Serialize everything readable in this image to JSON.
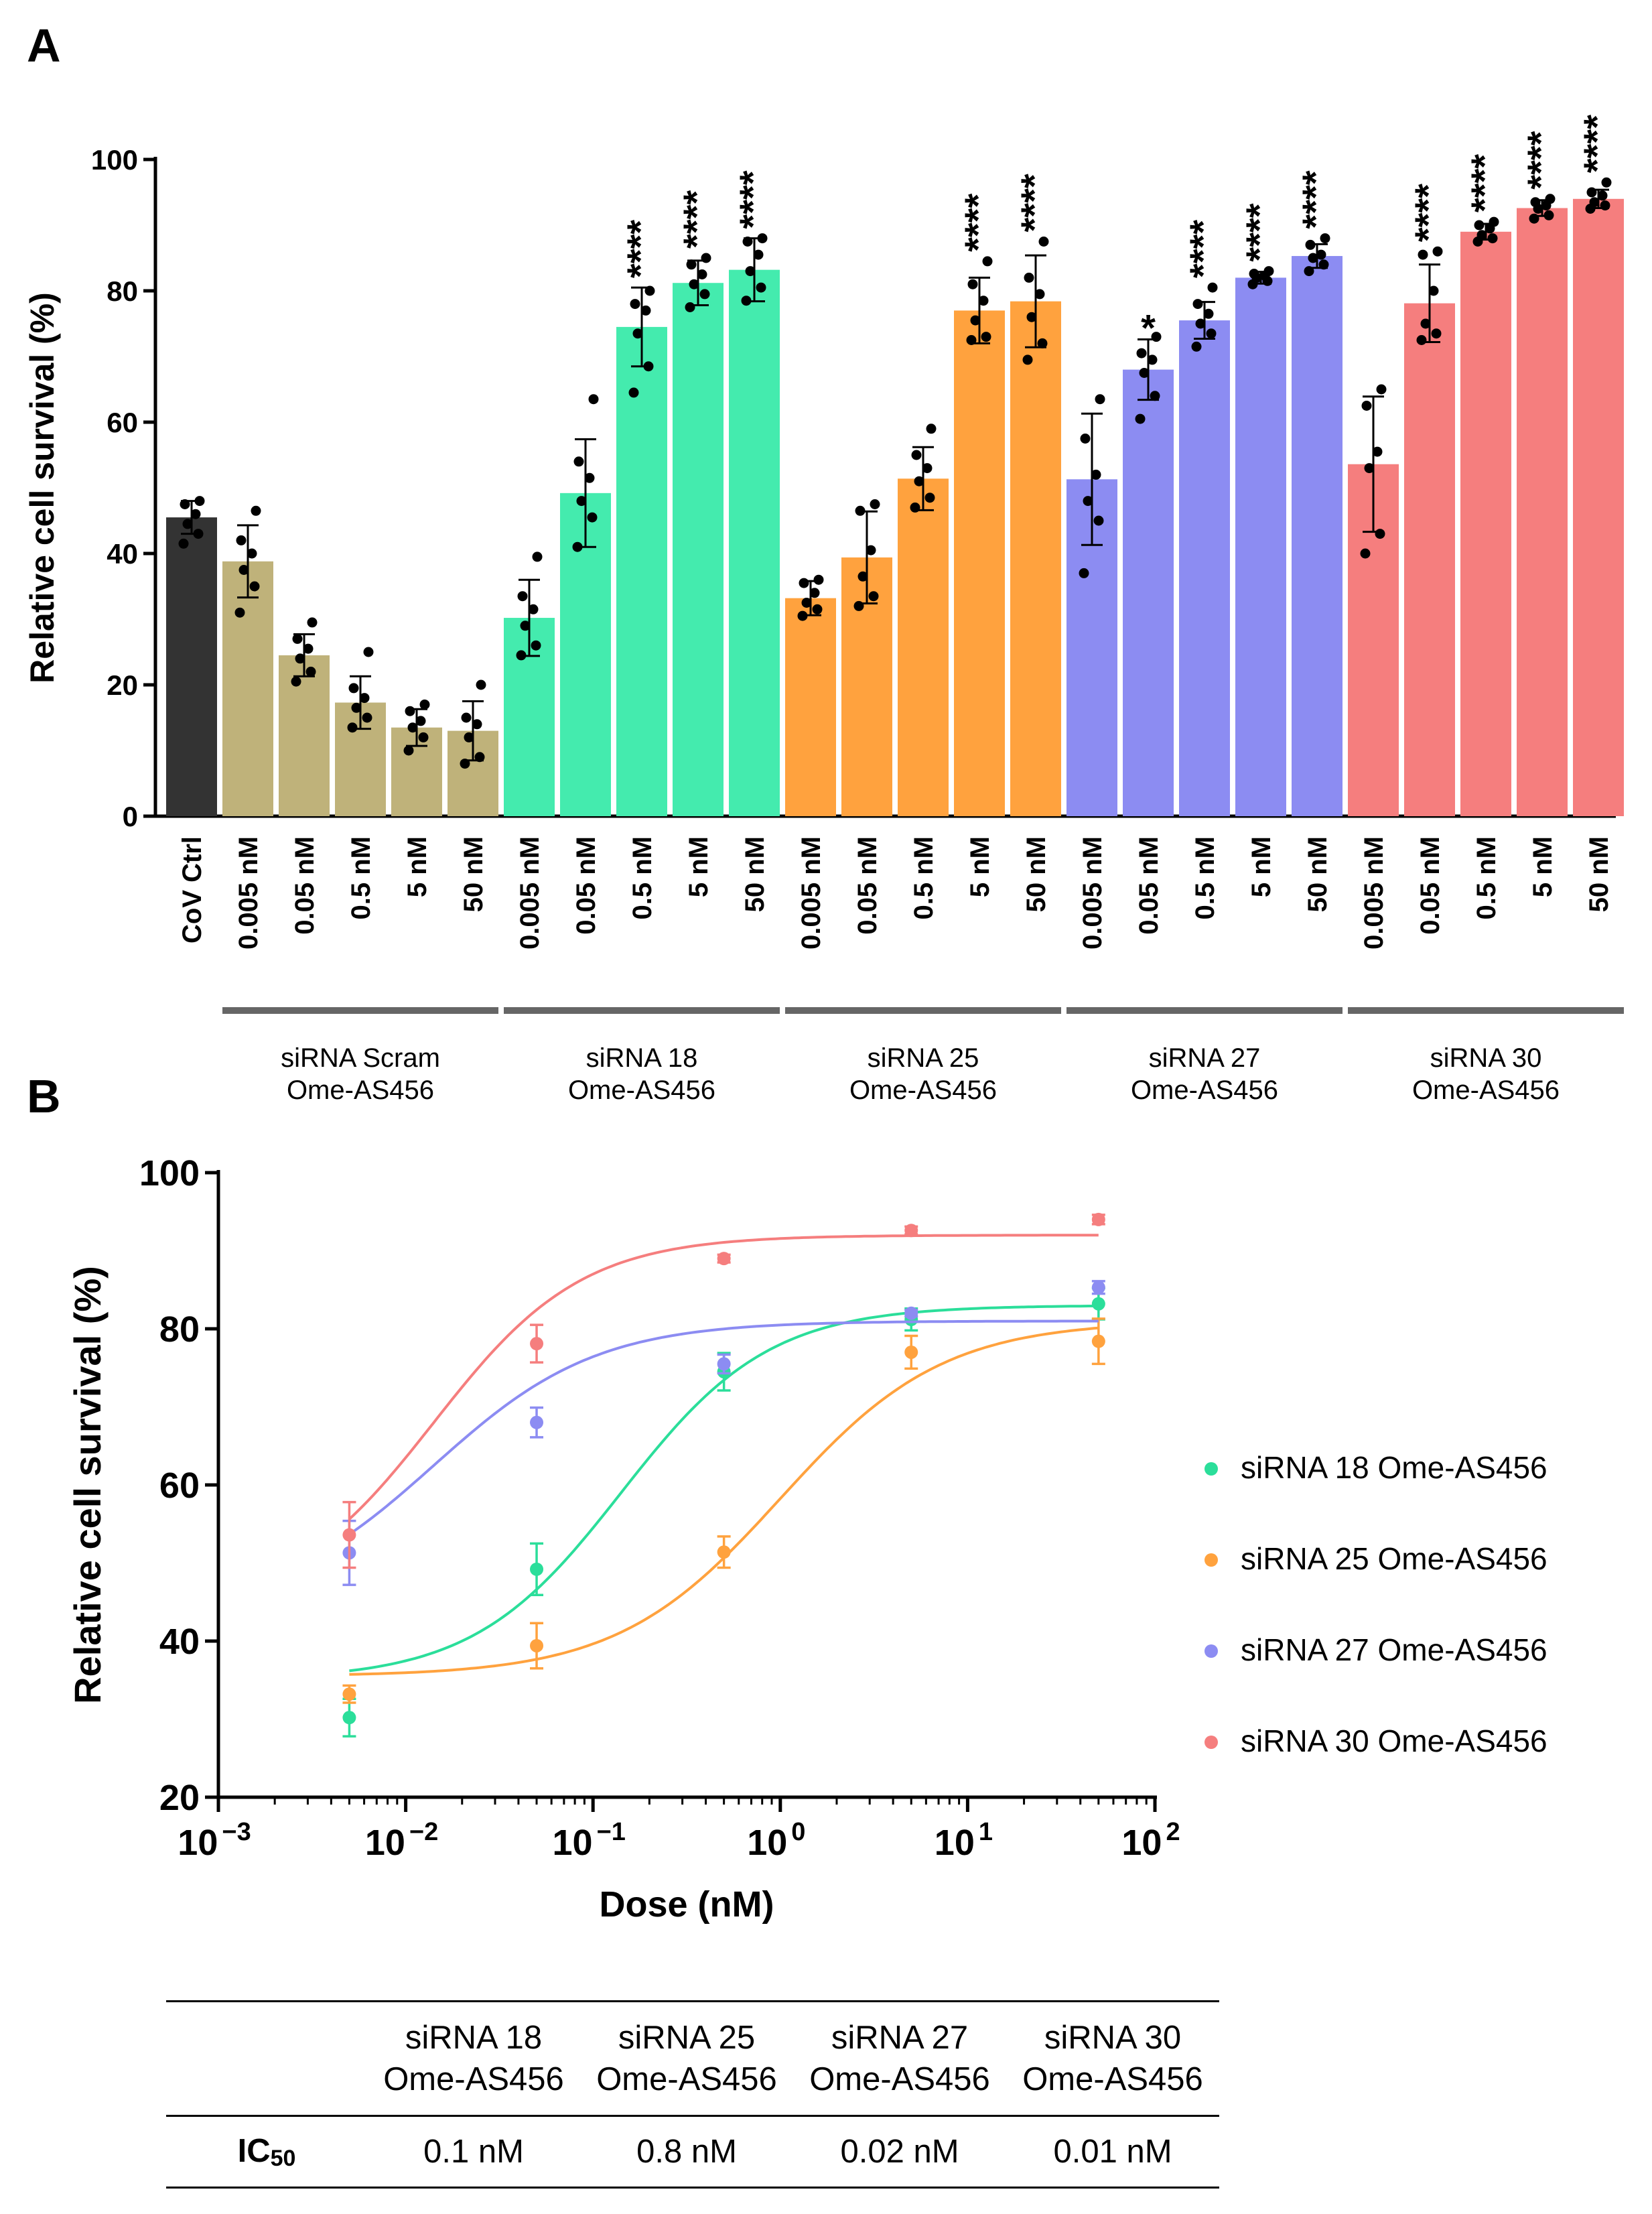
{
  "panels": {
    "a": "A",
    "b": "B"
  },
  "chart_data": [
    {
      "type": "bar",
      "ylabel": "Relative cell survival (%)",
      "ylim": [
        0,
        100
      ],
      "yticks": [
        0,
        20,
        40,
        60,
        80,
        100
      ],
      "groups": [
        {
          "name": "CoV Ctrl",
          "label1": "",
          "label2": "",
          "color": "#333333",
          "bars": [
            {
              "dose": "CoV Ctrl",
              "value": 45.5,
              "sd": 2.5,
              "points": [
                41.5,
                43,
                44.5,
                46,
                47.5,
                48
              ],
              "sig": ""
            }
          ]
        },
        {
          "name": "siRNA Scram",
          "label1": "siRNA Scram",
          "label2": "Ome-AS456",
          "color": "#BFB27A",
          "bars": [
            {
              "dose": "0.005 nM",
              "value": 38.8,
              "sd": 5.5,
              "points": [
                31,
                35,
                37.5,
                40,
                42,
                46.5
              ],
              "sig": ""
            },
            {
              "dose": "0.05 nM",
              "value": 24.5,
              "sd": 3.2,
              "points": [
                20.5,
                22,
                24,
                25.5,
                27,
                29.5
              ],
              "sig": ""
            },
            {
              "dose": "0.5 nM",
              "value": 17.3,
              "sd": 4.0,
              "points": [
                13.5,
                15,
                16.5,
                18,
                19.5,
                25
              ],
              "sig": ""
            },
            {
              "dose": "5 nM",
              "value": 13.5,
              "sd": 2.8,
              "points": [
                10,
                12,
                13.5,
                14.5,
                16,
                17
              ],
              "sig": ""
            },
            {
              "dose": "50 nM",
              "value": 13.0,
              "sd": 4.5,
              "points": [
                8,
                9,
                12,
                14,
                15,
                20
              ],
              "sig": ""
            }
          ]
        },
        {
          "name": "siRNA 18",
          "label1": "siRNA 18",
          "label2": "Ome-AS456",
          "color": "#44EBAE",
          "bars": [
            {
              "dose": "0.005 nM",
              "value": 30.2,
              "sd": 5.8,
              "points": [
                24.5,
                26,
                29,
                31.5,
                33.5,
                39.5
              ],
              "sig": ""
            },
            {
              "dose": "0.05 nM",
              "value": 49.2,
              "sd": 8.2,
              "points": [
                41,
                45.5,
                48,
                51.5,
                54,
                63.5
              ],
              "sig": ""
            },
            {
              "dose": "0.5 nM",
              "value": 74.5,
              "sd": 6.0,
              "points": [
                64.5,
                68.5,
                73.5,
                77,
                78,
                80
              ],
              "sig": "****"
            },
            {
              "dose": "5 nM",
              "value": 81.2,
              "sd": 3.4,
              "points": [
                77.5,
                79.5,
                81,
                82.5,
                84,
                85
              ],
              "sig": "****"
            },
            {
              "dose": "50 nM",
              "value": 83.2,
              "sd": 4.8,
              "points": [
                78.5,
                80.5,
                83,
                85.5,
                87.5,
                88
              ],
              "sig": "****"
            }
          ]
        },
        {
          "name": "siRNA 25",
          "label1": "siRNA 25",
          "label2": "Ome-AS456",
          "color": "#FFA23E",
          "bars": [
            {
              "dose": "0.005 nM",
              "value": 33.2,
              "sd": 2.6,
              "points": [
                30.5,
                31.5,
                32.5,
                34,
                35.5,
                36
              ],
              "sig": ""
            },
            {
              "dose": "0.05 nM",
              "value": 39.4,
              "sd": 7.0,
              "points": [
                32,
                33.5,
                36.5,
                40.5,
                46.5,
                47.5
              ],
              "sig": ""
            },
            {
              "dose": "0.5 nM",
              "value": 51.4,
              "sd": 4.8,
              "points": [
                47,
                48.5,
                51,
                53,
                55,
                59
              ],
              "sig": ""
            },
            {
              "dose": "5 nM",
              "value": 77.0,
              "sd": 5.0,
              "points": [
                72.5,
                73,
                75.5,
                78.5,
                81,
                84.5
              ],
              "sig": "****"
            },
            {
              "dose": "50 nM",
              "value": 78.4,
              "sd": 7.0,
              "points": [
                69.5,
                72,
                76,
                79.5,
                82,
                87.5
              ],
              "sig": "****"
            }
          ]
        },
        {
          "name": "siRNA 27",
          "label1": "siRNA 27",
          "label2": "Ome-AS456",
          "color": "#8C8CF2",
          "bars": [
            {
              "dose": "0.005 nM",
              "value": 51.3,
              "sd": 10.0,
              "points": [
                37,
                45,
                48,
                52,
                57.5,
                63.5
              ],
              "sig": ""
            },
            {
              "dose": "0.05 nM",
              "value": 68.0,
              "sd": 4.6,
              "points": [
                60.5,
                64,
                67.5,
                69.5,
                70.5,
                73
              ],
              "sig": "*"
            },
            {
              "dose": "0.5 nM",
              "value": 75.5,
              "sd": 2.8,
              "points": [
                71.5,
                73.5,
                75,
                76.5,
                78,
                80.5
              ],
              "sig": "****"
            },
            {
              "dose": "5 nM",
              "value": 82.0,
              "sd": 0.9,
              "points": [
                81,
                81.5,
                82,
                82.3,
                82.6,
                83
              ],
              "sig": "****"
            },
            {
              "dose": "50 nM",
              "value": 85.3,
              "sd": 1.8,
              "points": [
                83,
                84,
                85,
                85.5,
                87,
                88
              ],
              "sig": "****"
            }
          ]
        },
        {
          "name": "siRNA 30",
          "label1": "siRNA 30",
          "label2": "Ome-AS456",
          "color": "#F57E7E",
          "bars": [
            {
              "dose": "0.005 nM",
              "value": 53.6,
              "sd": 10.3,
              "points": [
                40,
                43,
                53,
                55.5,
                62.5,
                65
              ],
              "sig": ""
            },
            {
              "dose": "0.05 nM",
              "value": 78.1,
              "sd": 5.9,
              "points": [
                72.5,
                73.5,
                75,
                80,
                85.5,
                86
              ],
              "sig": "****"
            },
            {
              "dose": "0.5 nM",
              "value": 89.0,
              "sd": 1.2,
              "points": [
                87.5,
                88,
                88.5,
                89.5,
                90,
                90.5
              ],
              "sig": "****"
            },
            {
              "dose": "5 nM",
              "value": 92.6,
              "sd": 1.2,
              "points": [
                91,
                91.5,
                92.5,
                93,
                93.5,
                94
              ],
              "sig": "****"
            },
            {
              "dose": "50 nM",
              "value": 94.0,
              "sd": 1.4,
              "points": [
                92.5,
                93,
                93.5,
                94.5,
                95,
                96.5
              ],
              "sig": "****"
            }
          ]
        }
      ]
    },
    {
      "type": "scatter",
      "xlabel": "Dose (nM)",
      "ylabel": "Relative cell survival (%)",
      "ylim": [
        20,
        100
      ],
      "yticks": [
        20,
        40,
        60,
        80,
        100
      ],
      "xlim_log10": [
        -3,
        2
      ],
      "xticks": [
        {
          "base": "10",
          "exp": "−3"
        },
        {
          "base": "10",
          "exp": "−2"
        },
        {
          "base": "10",
          "exp": "−1"
        },
        {
          "base": "10",
          "exp": "0"
        },
        {
          "base": "10",
          "exp": "1"
        },
        {
          "base": "10",
          "exp": "2"
        }
      ],
      "x": [
        0.005,
        0.05,
        0.5,
        5,
        50
      ],
      "series": [
        {
          "name": "siRNA 18 Ome-AS456",
          "color": "#2BDE9A",
          "values": [
            30.2,
            49.2,
            74.5,
            81.2,
            83.2
          ],
          "err": [
            2.4,
            3.3,
            2.4,
            1.4,
            2.0
          ],
          "fit": {
            "bottom": 35,
            "top": 83,
            "logEC50": -0.85,
            "hill": 1.1
          }
        },
        {
          "name": "siRNA 25 Ome-AS456",
          "color": "#FFA23E",
          "values": [
            33.2,
            39.4,
            51.4,
            77.0,
            78.4
          ],
          "err": [
            1.1,
            2.9,
            2.0,
            2.1,
            2.9
          ],
          "fit": {
            "bottom": 35.5,
            "top": 81,
            "logEC50": 0.0,
            "hill": 1.0
          }
        },
        {
          "name": "siRNA 27 Ome-AS456",
          "color": "#8C8CF2",
          "values": [
            51.3,
            68.0,
            75.5,
            82.0,
            85.3
          ],
          "err": [
            4.1,
            1.9,
            1.2,
            0.4,
            0.8
          ],
          "fit": {
            "bottom": 44,
            "top": 81,
            "logEC50": -1.85,
            "hill": 1.0
          }
        },
        {
          "name": "siRNA 30 Ome-AS456",
          "color": "#F57E7E",
          "values": [
            53.6,
            78.1,
            89.0,
            92.6,
            94.0
          ],
          "err": [
            4.2,
            2.4,
            0.5,
            0.5,
            0.6
          ],
          "fit": {
            "bottom": 44,
            "top": 92,
            "logEC50": -1.85,
            "hill": 1.1
          }
        }
      ]
    }
  ],
  "table": {
    "row_label": "IC",
    "row_label_sub": "50",
    "headers": [
      {
        "line1": "siRNA 18",
        "line2": "Ome-AS456"
      },
      {
        "line1": "siRNA 25",
        "line2": "Ome-AS456"
      },
      {
        "line1": "siRNA 27",
        "line2": "Ome-AS456"
      },
      {
        "line1": "siRNA 30",
        "line2": "Ome-AS456"
      }
    ],
    "values": [
      "0.1 nM",
      "0.8 nM",
      "0.02 nM",
      "0.01 nM"
    ]
  }
}
